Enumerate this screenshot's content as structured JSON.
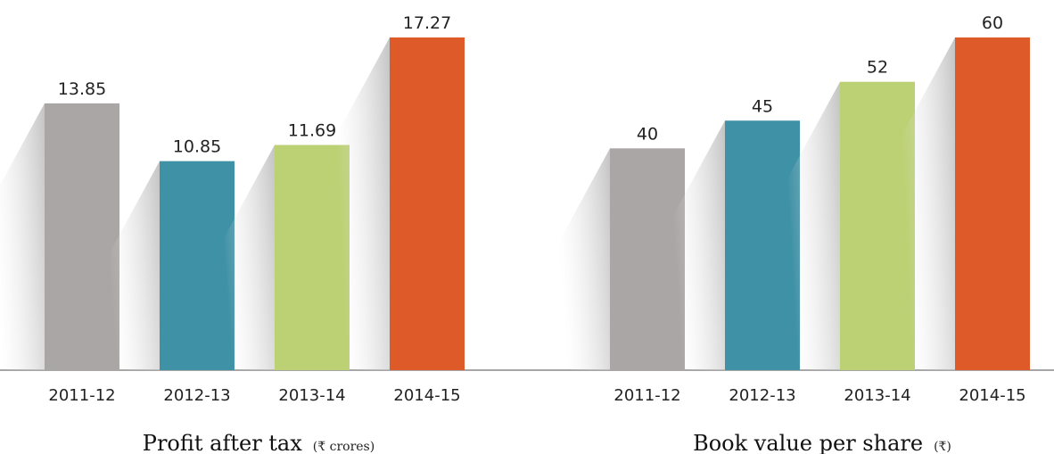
{
  "chart_data": [
    {
      "type": "bar",
      "title": "Profit after tax",
      "unit": "(₹ crores)",
      "categories": [
        "2011-12",
        "2012-13",
        "2013-14",
        "2014-15"
      ],
      "values": [
        13.85,
        10.85,
        11.69,
        17.27
      ],
      "value_labels": [
        "13.85",
        "10.85",
        "11.69",
        "17.27"
      ],
      "colors": [
        "#aaa6a5",
        "#3f91a6",
        "#bcd174",
        "#de5a28"
      ]
    },
    {
      "type": "bar",
      "title": "Book value per share",
      "unit": "(₹)",
      "categories": [
        "2011-12",
        "2012-13",
        "2013-14",
        "2014-15"
      ],
      "values": [
        40,
        45,
        52,
        60
      ],
      "colors": [
        "#aaa6a5",
        "#3f91a6",
        "#bcd174",
        "#de5a28"
      ]
    }
  ]
}
